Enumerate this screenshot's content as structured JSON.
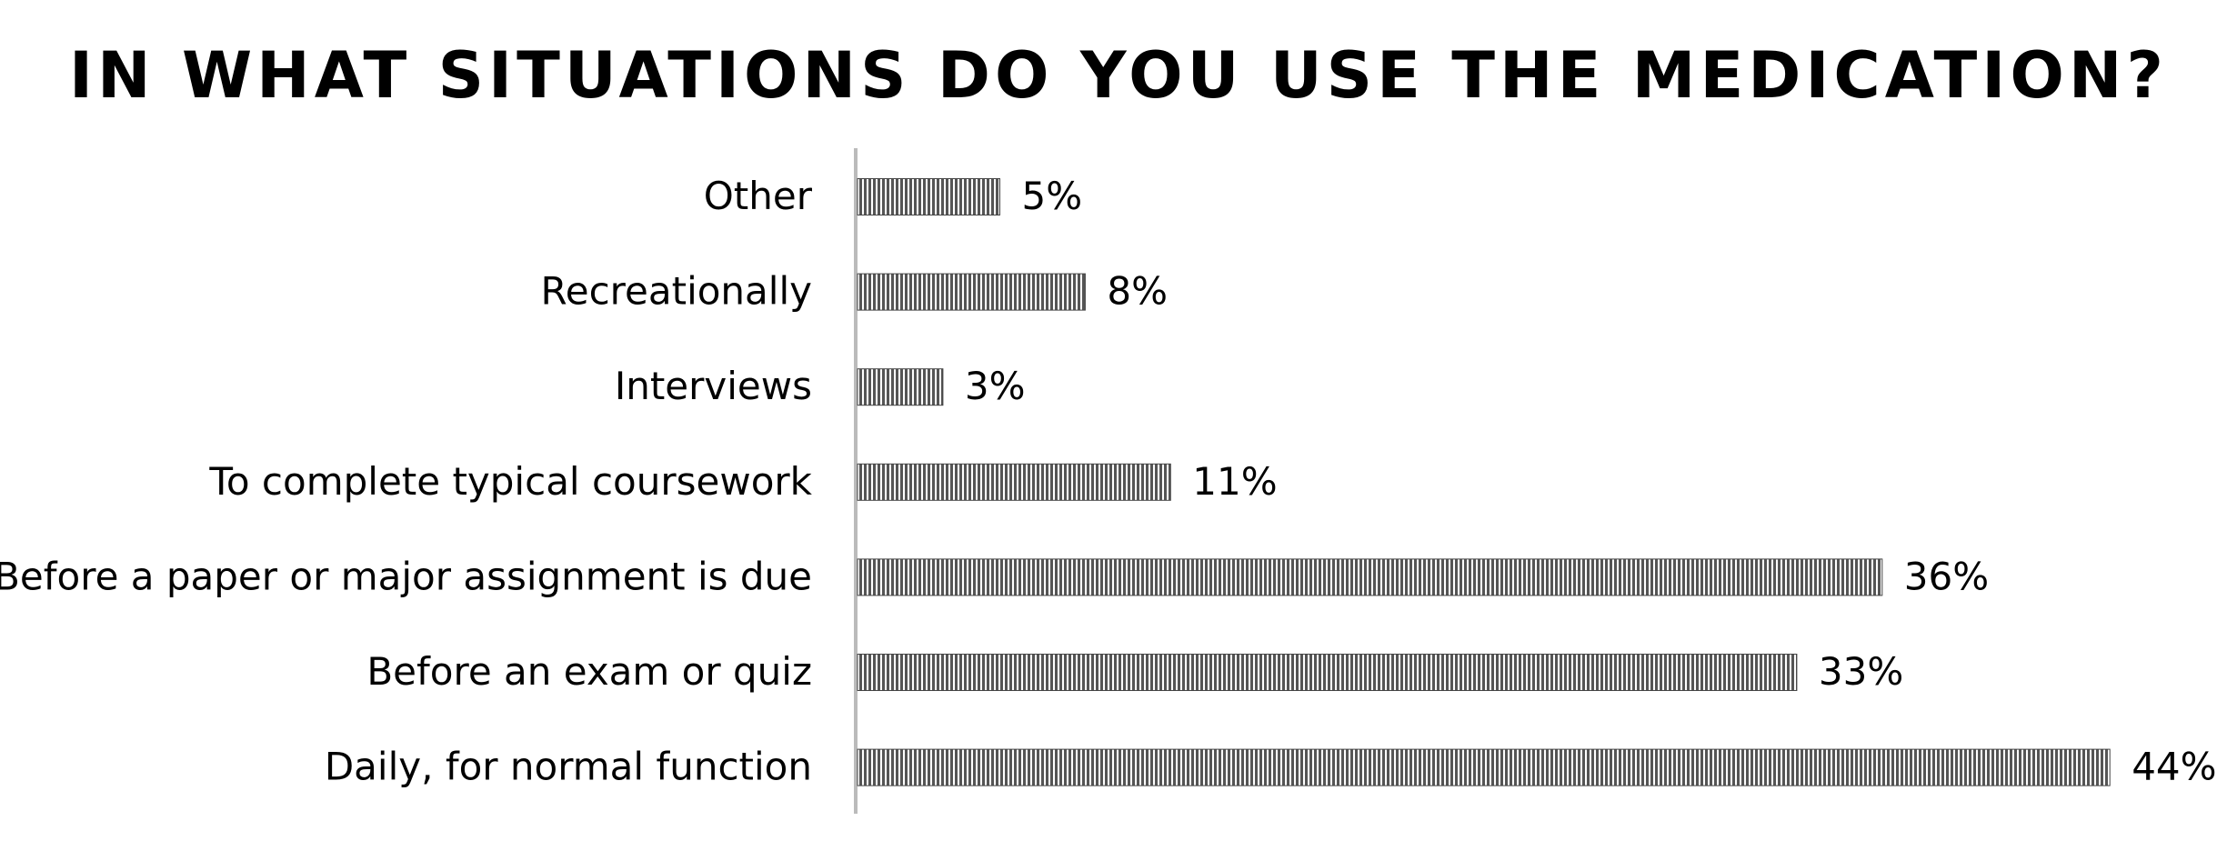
{
  "chart_data": {
    "type": "bar",
    "orientation": "horizontal",
    "title": "IN WHAT SITUATIONS DO YOU USE THE MEDICATION?",
    "categories": [
      "Other",
      "Recreationally",
      "Interviews",
      "To complete typical coursework",
      "Before a paper or major assignment is due",
      "Before an exam or quiz",
      "Daily, for normal function"
    ],
    "values": [
      5,
      8,
      3,
      11,
      36,
      33,
      44
    ],
    "value_labels": [
      "5%",
      "8%",
      "3%",
      "11%",
      "36%",
      "33%",
      "44%"
    ],
    "color": "#555555"
  }
}
